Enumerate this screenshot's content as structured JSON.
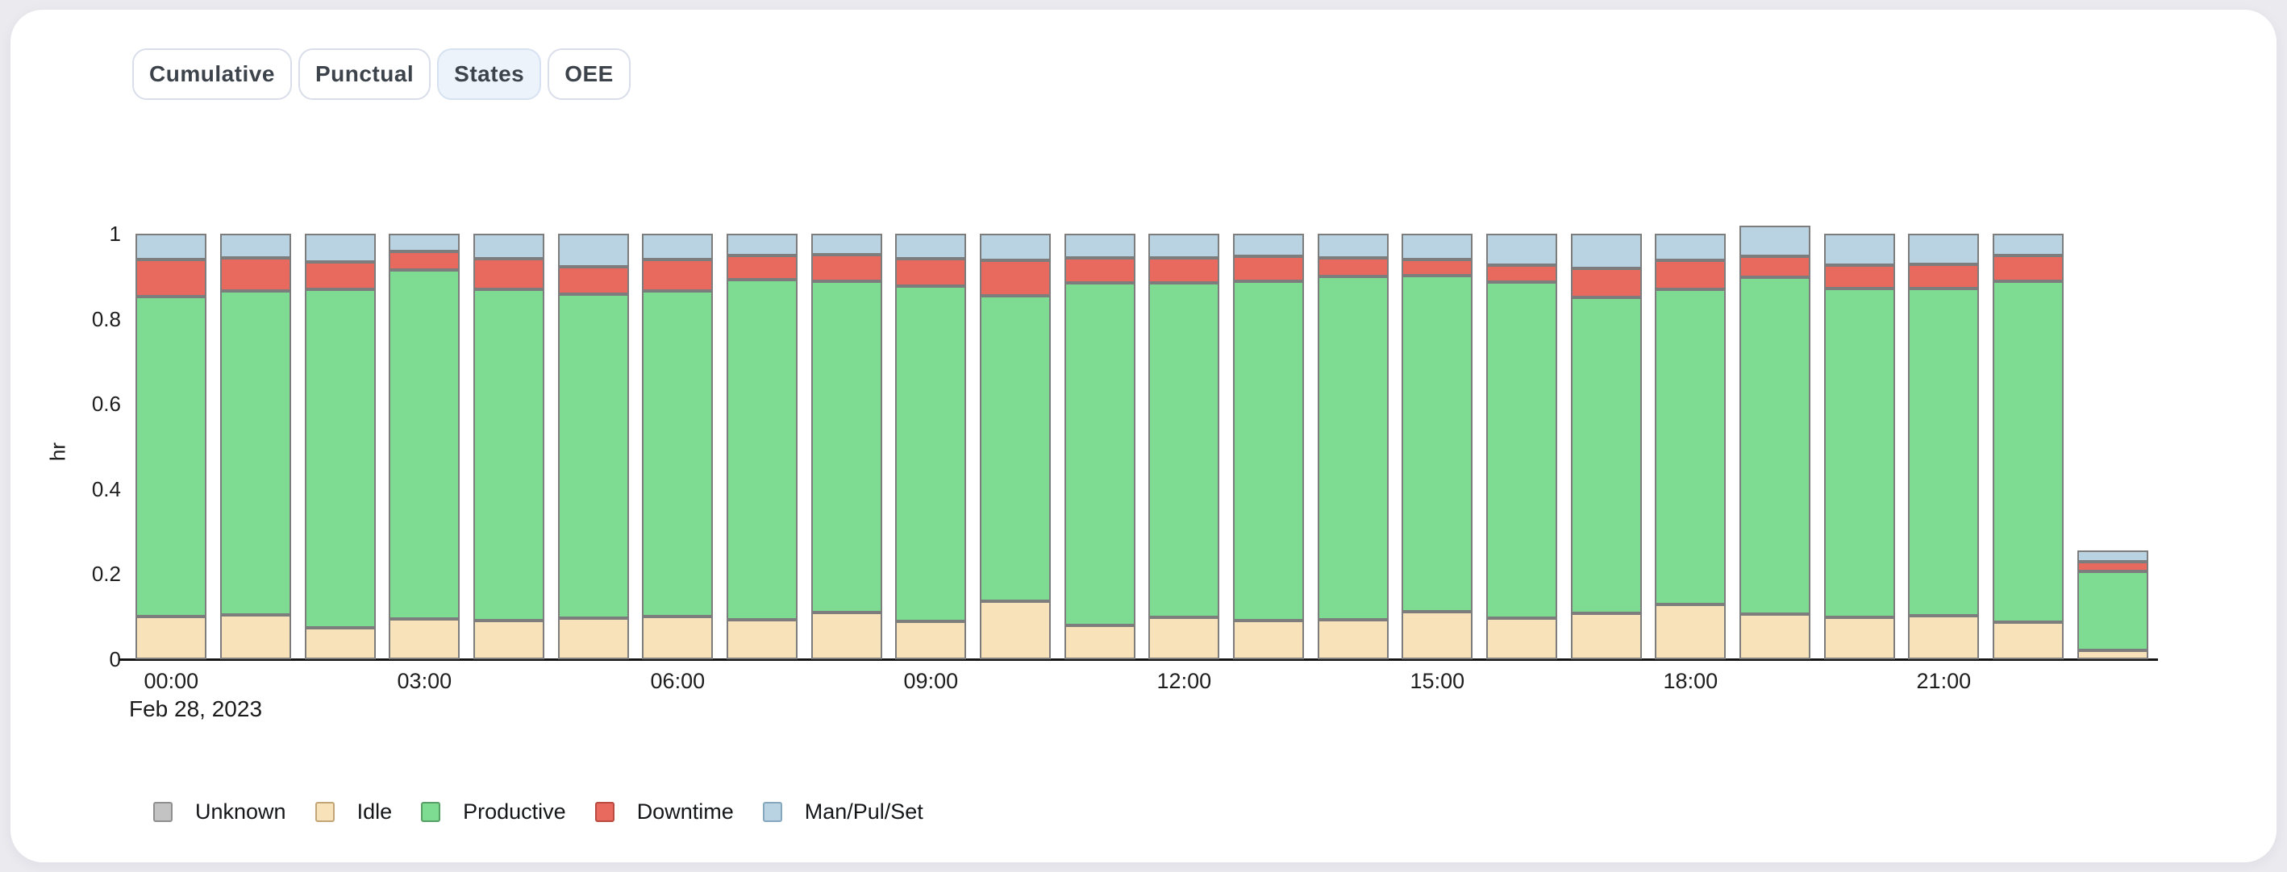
{
  "page": {
    "background": "#eaeaef",
    "card_color": "#ffffff"
  },
  "tabs": [
    {
      "label": "Cumulative",
      "active": false
    },
    {
      "label": "Punctual",
      "active": false
    },
    {
      "label": "States",
      "active": true
    },
    {
      "label": "OEE",
      "active": false
    }
  ],
  "chart_data": {
    "type": "bar",
    "stacked": true,
    "title": "",
    "xlabel": "",
    "ylabel": "hr",
    "x_axis_date": "Feb 28, 2023",
    "ylim": [
      0,
      1
    ],
    "y_ticks": [
      "0",
      "0.2",
      "0.4",
      "0.6",
      "0.8",
      "1"
    ],
    "x_tick_every": 3,
    "grid": false,
    "legend_position": "bottom-left",
    "categories": [
      "00:00",
      "01:00",
      "02:00",
      "03:00",
      "04:00",
      "05:00",
      "06:00",
      "07:00",
      "08:00",
      "09:00",
      "10:00",
      "11:00",
      "12:00",
      "13:00",
      "14:00",
      "15:00",
      "16:00",
      "17:00",
      "18:00",
      "19:00",
      "20:00",
      "21:00",
      "22:00",
      "23:00"
    ],
    "series": [
      {
        "name": "Unknown",
        "color": "#c3c3c3",
        "border": "#8f8f8f",
        "values": [
          0,
          0,
          0,
          0,
          0,
          0,
          0,
          0,
          0,
          0,
          0,
          0,
          0,
          0,
          0,
          0,
          0,
          0,
          0,
          0,
          0,
          0,
          0,
          0
        ]
      },
      {
        "name": "Idle",
        "color": "#f8e2b9",
        "border": "#c2a577",
        "values": [
          0.1,
          0.105,
          0.073,
          0.094,
          0.091,
          0.096,
          0.1,
          0.093,
          0.11,
          0.089,
          0.136,
          0.08,
          0.098,
          0.09,
          0.093,
          0.111,
          0.097,
          0.108,
          0.129,
          0.107,
          0.098,
          0.103,
          0.088,
          0.02
        ]
      },
      {
        "name": "Productive",
        "color": "#7edc92",
        "border": "#56a066",
        "values": [
          0.753,
          0.761,
          0.796,
          0.821,
          0.779,
          0.762,
          0.766,
          0.8,
          0.778,
          0.788,
          0.719,
          0.804,
          0.786,
          0.798,
          0.806,
          0.791,
          0.789,
          0.742,
          0.74,
          0.79,
          0.774,
          0.769,
          0.801,
          0.186
        ]
      },
      {
        "name": "Downtime",
        "color": "#e86a5e",
        "border": "#b94b40",
        "values": [
          0.086,
          0.077,
          0.065,
          0.044,
          0.072,
          0.065,
          0.074,
          0.055,
          0.062,
          0.064,
          0.083,
          0.059,
          0.059,
          0.059,
          0.045,
          0.038,
          0.041,
          0.069,
          0.068,
          0.05,
          0.055,
          0.056,
          0.06,
          0.023
        ]
      },
      {
        "name": "Man/Pul/Set",
        "color": "#b9d3e2",
        "border": "#85a8be",
        "values": [
          0.061,
          0.057,
          0.066,
          0.041,
          0.058,
          0.077,
          0.06,
          0.052,
          0.05,
          0.059,
          0.062,
          0.057,
          0.057,
          0.053,
          0.056,
          0.06,
          0.073,
          0.081,
          0.063,
          0.072,
          0.073,
          0.072,
          0.051,
          0.026
        ]
      }
    ]
  }
}
